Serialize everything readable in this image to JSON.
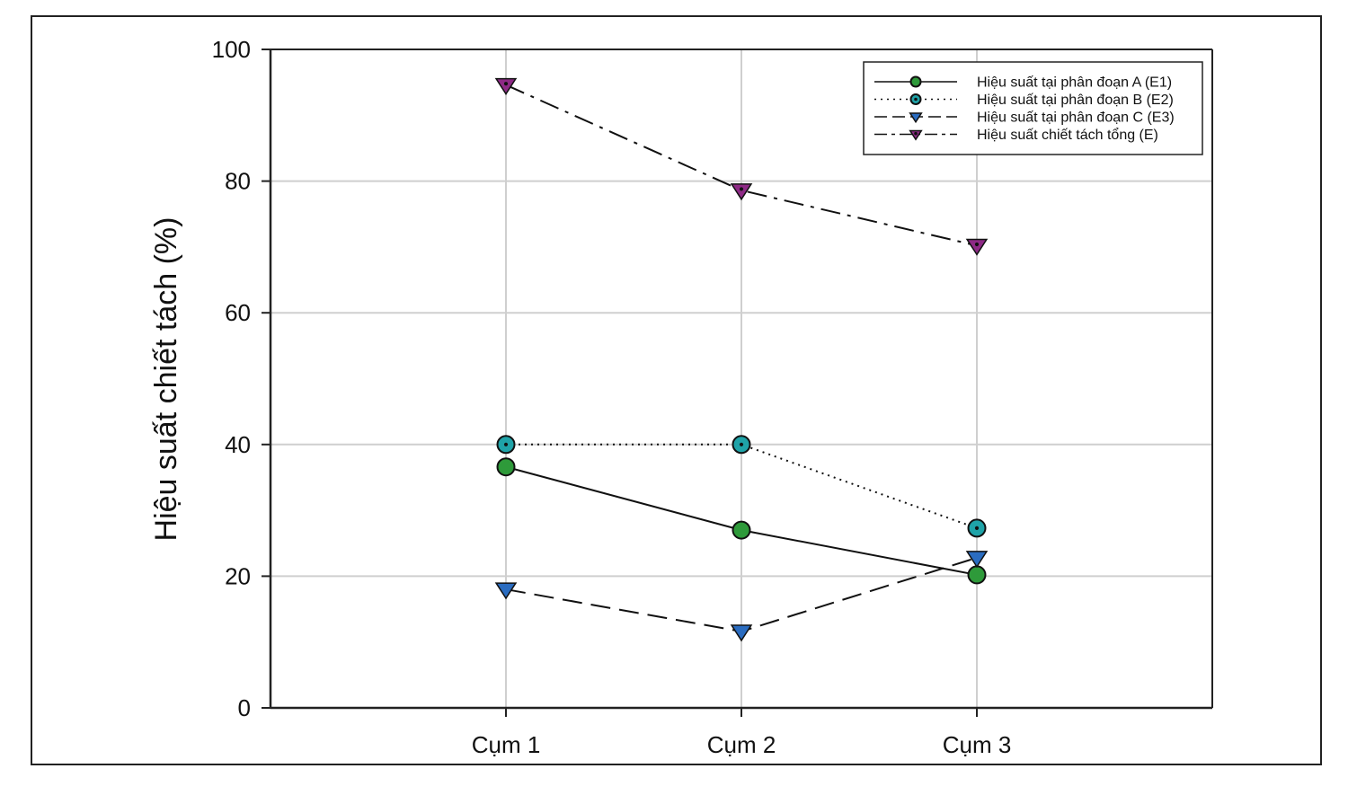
{
  "chart_data": {
    "type": "line",
    "title": "",
    "xlabel": "",
    "ylabel": "Hiệu suất chiết tách (%)",
    "categories": [
      "Cụm 1",
      "Cụm 2",
      "Cụm 3"
    ],
    "ylim": [
      0,
      100
    ],
    "yticks": [
      0,
      20,
      40,
      60,
      80,
      100
    ],
    "grid": true,
    "legend_position": "top-right",
    "series": [
      {
        "name": "Hiệu suất tại phân đoạn A (E1)",
        "values": [
          36.6,
          27.0,
          20.2
        ],
        "line_style": "solid",
        "marker": "circle",
        "marker_color": "#2e9a3a",
        "dot": false
      },
      {
        "name": "Hiệu suất tại phân đoạn B (E2)",
        "values": [
          40.0,
          40.0,
          27.3
        ],
        "line_style": "dotted",
        "marker": "circle",
        "marker_color": "#1fa3a8",
        "dot": true
      },
      {
        "name": "Hiệu suất tại phân đoạn C (E3)",
        "values": [
          18.0,
          11.6,
          22.8
        ],
        "line_style": "dashed",
        "marker": "triangle-down",
        "marker_color": "#2a6cc0",
        "dot": false
      },
      {
        "name": "Hiệu suất chiết tách tổng (E)",
        "values": [
          94.6,
          78.6,
          70.2
        ],
        "line_style": "dash-dot",
        "marker": "triangle-down",
        "marker_color": "#8e2a86",
        "dot": true
      }
    ]
  }
}
